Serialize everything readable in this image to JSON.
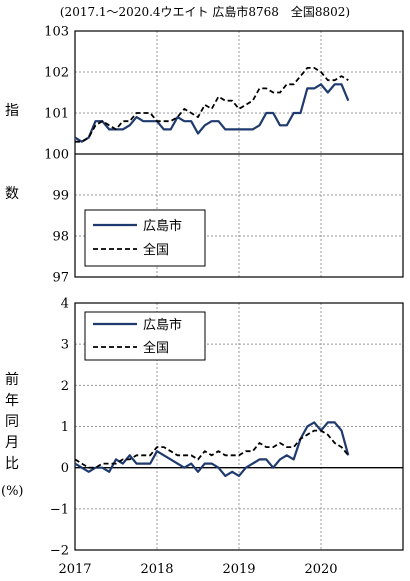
{
  "title": "(2017.1～2020.4ウエイト 広島市8768　全国8802)",
  "colors": {
    "hiroshima": "#1f3a6e",
    "national": "#000000",
    "grid": "#9a9a9a"
  },
  "chart_data": [
    {
      "type": "line",
      "ylabel_chars": [
        "指",
        "数"
      ],
      "ylim": [
        97,
        103
      ],
      "yticks": [
        "97",
        "98",
        "99",
        "100",
        "101",
        "102",
        "103"
      ],
      "grid": true,
      "baseline": 100,
      "legend_position": "bottom-left",
      "series": [
        {
          "name": "広島市",
          "style": "solid",
          "values": [
            100.4,
            100.3,
            100.4,
            100.8,
            100.8,
            100.6,
            100.6,
            100.6,
            100.7,
            100.9,
            100.8,
            100.8,
            100.8,
            100.6,
            100.6,
            100.9,
            100.8,
            100.8,
            100.5,
            100.7,
            100.8,
            100.8,
            100.6,
            100.6,
            100.6,
            100.6,
            100.6,
            100.7,
            101.0,
            101.0,
            100.7,
            100.7,
            101.0,
            101.0,
            101.6,
            101.6,
            101.7,
            101.5,
            101.7,
            101.7,
            101.3
          ]
        },
        {
          "name": "全国",
          "style": "dashed",
          "values": [
            100.3,
            100.3,
            100.4,
            100.7,
            100.8,
            100.7,
            100.6,
            100.8,
            100.8,
            101.0,
            101.0,
            101.0,
            100.8,
            100.8,
            100.8,
            100.9,
            101.1,
            101.0,
            100.9,
            101.2,
            101.1,
            101.4,
            101.3,
            101.3,
            101.1,
            101.2,
            101.3,
            101.6,
            101.6,
            101.5,
            101.5,
            101.7,
            101.7,
            101.9,
            102.1,
            102.1,
            102.0,
            101.8,
            101.8,
            101.9,
            101.8
          ]
        }
      ]
    },
    {
      "type": "line",
      "ylabel_chars": [
        "前",
        "年",
        "同",
        "月",
        "比"
      ],
      "ylabel_unit": "(%)",
      "ylim": [
        -2,
        4
      ],
      "yticks": [
        "−2",
        "−1",
        "0",
        "1",
        "2",
        "3",
        "4"
      ],
      "grid": true,
      "baseline": 0,
      "legend_position": "top-left",
      "series": [
        {
          "name": "広島市",
          "style": "solid",
          "values": [
            0.1,
            0.0,
            -0.1,
            0.0,
            0.0,
            -0.1,
            0.2,
            0.1,
            0.3,
            0.1,
            0.1,
            0.1,
            0.4,
            0.3,
            0.2,
            0.1,
            0.0,
            0.1,
            -0.1,
            0.1,
            0.1,
            0.0,
            -0.2,
            -0.1,
            -0.2,
            0.0,
            0.1,
            0.2,
            0.2,
            0.0,
            0.2,
            0.3,
            0.2,
            0.7,
            1.0,
            1.1,
            0.9,
            1.1,
            1.1,
            0.9,
            0.3
          ]
        },
        {
          "name": "全国",
          "style": "dashed",
          "values": [
            0.2,
            0.1,
            0.0,
            0.0,
            0.1,
            0.1,
            0.1,
            0.2,
            0.2,
            0.3,
            0.3,
            0.3,
            0.5,
            0.5,
            0.4,
            0.3,
            0.3,
            0.3,
            0.2,
            0.4,
            0.3,
            0.4,
            0.3,
            0.3,
            0.3,
            0.4,
            0.4,
            0.6,
            0.5,
            0.5,
            0.6,
            0.5,
            0.5,
            0.7,
            0.8,
            0.9,
            0.9,
            0.8,
            0.6,
            0.5,
            0.3
          ]
        }
      ]
    }
  ],
  "x_axis": {
    "tick_labels": [
      "2017",
      "2018",
      "2019",
      "2020"
    ]
  }
}
